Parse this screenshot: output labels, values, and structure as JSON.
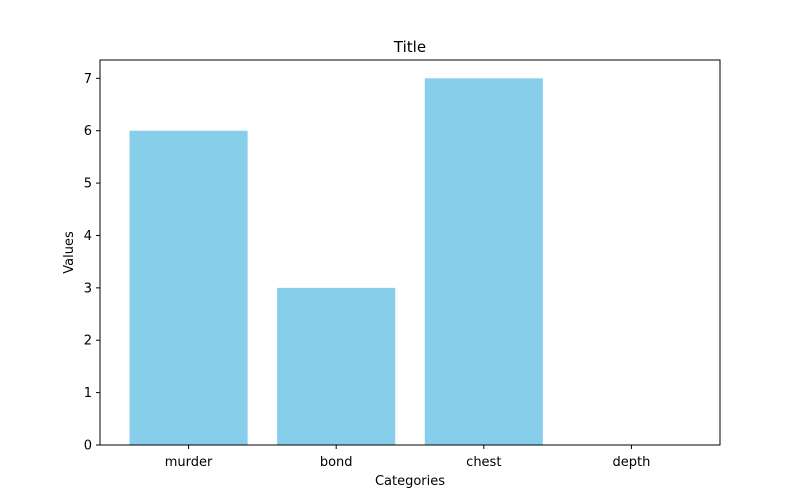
{
  "chart_data": {
    "type": "bar",
    "title": "Title",
    "xlabel": "Categories",
    "ylabel": "Values",
    "categories": [
      "murder",
      "bond",
      "chest",
      "depth"
    ],
    "values": [
      6,
      3,
      7,
      0
    ],
    "ylim": [
      0,
      7.35
    ],
    "yticks": [
      "0",
      "1",
      "2",
      "3",
      "4",
      "5",
      "6",
      "7"
    ],
    "grid": false,
    "bar_color": "#87CEEB",
    "axis_color": "#000000",
    "background": "#ffffff"
  }
}
